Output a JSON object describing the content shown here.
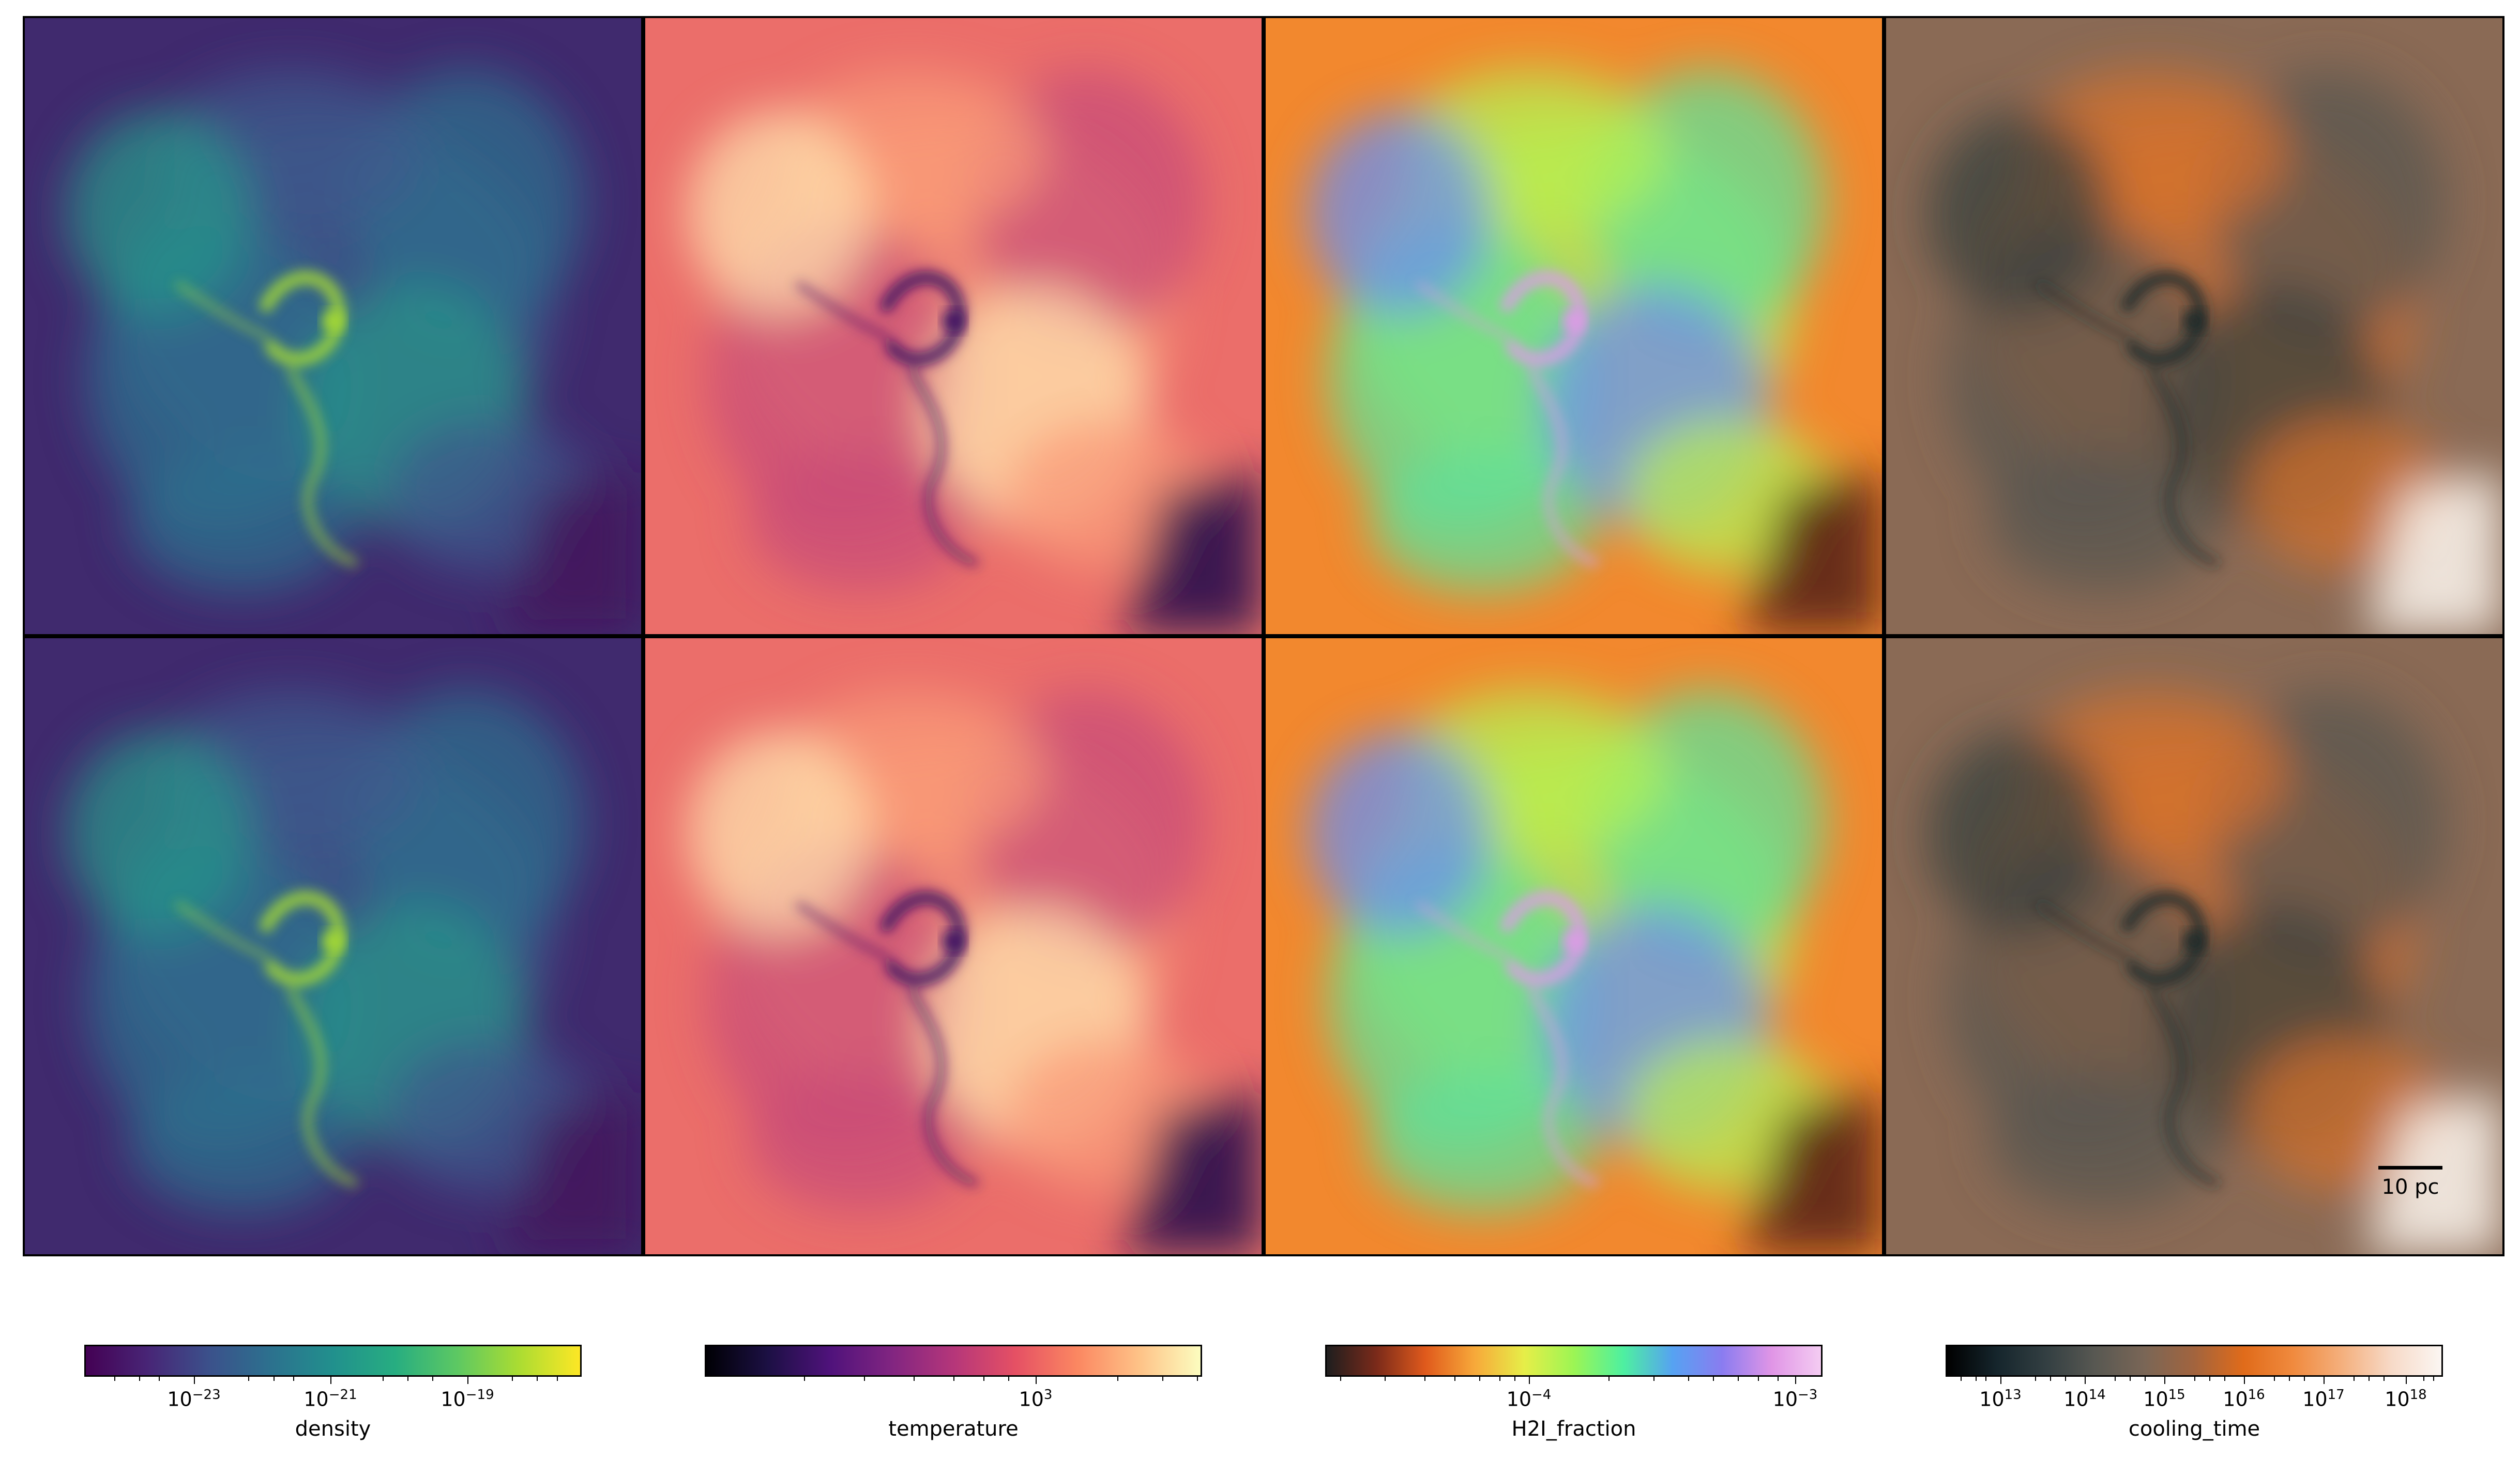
{
  "scale_bar": {
    "label": "10 pc"
  },
  "colorbars": [
    {
      "label": "density",
      "gradient": [
        "#440154",
        "#482576",
        "#3b518b",
        "#2c718e",
        "#21908d",
        "#27ad81",
        "#5cc863",
        "#aadc32",
        "#fde725"
      ],
      "major_ticks": [
        {
          "base": "10",
          "exp": "−23"
        },
        {
          "base": "10",
          "exp": "−21"
        },
        {
          "base": "10",
          "exp": "−19"
        }
      ]
    },
    {
      "label": "temperature",
      "gradient": [
        "#000004",
        "#1c1044",
        "#4f127b",
        "#812581",
        "#b5367a",
        "#e55064",
        "#fb8761",
        "#fec287",
        "#fcfdbf"
      ],
      "major_ticks": [
        {
          "base": "10",
          "exp": "3"
        }
      ]
    },
    {
      "label": "H2I_fraction",
      "gradient": [
        "#1e1e1e",
        "#7a2a1a",
        "#e05a1c",
        "#f7a93a",
        "#e6ee48",
        "#9cf554",
        "#4ef0a0",
        "#56a2f2",
        "#8a7cf0",
        "#e095e6",
        "#f4ccf2"
      ],
      "major_ticks": [
        {
          "base": "10",
          "exp": "−4"
        },
        {
          "base": "10",
          "exp": "−3"
        }
      ]
    },
    {
      "label": "cooling_time",
      "gradient": [
        "#000000",
        "#15252c",
        "#333f42",
        "#585852",
        "#7a6656",
        "#a2643e",
        "#e06b1a",
        "#f08a3e",
        "#f4b07e",
        "#f7dac8",
        "#fbf6f2"
      ],
      "major_ticks": [
        {
          "base": "10",
          "exp": "13"
        },
        {
          "base": "10",
          "exp": "14"
        },
        {
          "base": "10",
          "exp": "15"
        },
        {
          "base": "10",
          "exp": "16"
        },
        {
          "base": "10",
          "exp": "17"
        },
        {
          "base": "10",
          "exp": "18"
        }
      ]
    }
  ],
  "panels": [
    {
      "field": "density",
      "bg": "#402a6e",
      "features": [
        "#3d5a8c",
        "#2f6f8e",
        "#27958a"
      ],
      "core": "#a8dc32",
      "dark": "#43165c"
    },
    {
      "field": "temperature",
      "bg": "#eb6e6a",
      "features": [
        "#f89a78",
        "#c84c78",
        "#fde0ae"
      ],
      "core": "#3b1062",
      "dark": "#2a0f4d"
    },
    {
      "field": "H2I_fraction",
      "bg": "#f2882e",
      "features": [
        "#b6f052",
        "#5fe29a",
        "#6a8ef2"
      ],
      "core": "#e09ae8",
      "dark": "#5a2414"
    },
    {
      "field": "cooling_time",
      "bg": "#8a6a55",
      "features": [
        "#d6722e",
        "#5a5550",
        "#37403f"
      ],
      "core": "#1e2a2c",
      "dark": "#f7efe8"
    },
    {
      "field": "density",
      "bg": "#402a6e",
      "features": [
        "#3d5a8c",
        "#2f6f8e",
        "#27958a"
      ],
      "core": "#a8dc32",
      "dark": "#43165c"
    },
    {
      "field": "temperature",
      "bg": "#eb6e6a",
      "features": [
        "#f89a78",
        "#c84c78",
        "#fde0ae"
      ],
      "core": "#3b1062",
      "dark": "#2a0f4d"
    },
    {
      "field": "H2I_fraction",
      "bg": "#f2882e",
      "features": [
        "#b6f052",
        "#5fe29a",
        "#6a8ef2"
      ],
      "core": "#e09ae8",
      "dark": "#5a2414"
    },
    {
      "field": "cooling_time",
      "bg": "#8a6a55",
      "features": [
        "#d6722e",
        "#5a5550",
        "#37403f"
      ],
      "core": "#1e2a2c",
      "dark": "#f7efe8"
    }
  ]
}
